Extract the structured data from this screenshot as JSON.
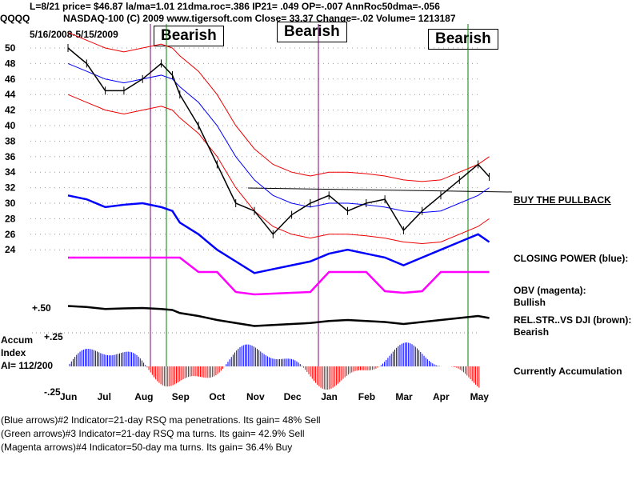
{
  "header": {
    "line1": "L=8/21  price= $46.87  la/ma=1.01 21dma.roc=.386 IP21= .049 OP=-.007 AnnRoc50dma=-.056",
    "symbol": "QQQQ",
    "line2": "NASDAQ-100  (C) 2009 www.tigersoft.com     Close=  33.37  Change=-.02 Volume=  1213187",
    "range": "5/16/2008-5/15/2009"
  },
  "boxes": [
    "Bearish",
    "Bearish",
    "Bearish"
  ],
  "right_labels": {
    "pullback": "BUY THE PULLBACK",
    "cp": "CLOSING POWER (blue):",
    "obv": "OBV (magenta):",
    "obv2": "Bullish",
    "rel": "REL.STR..VS DJI (brown):",
    "rel2": "Bearish",
    "accum": "Currently Accumulation"
  },
  "accum": {
    "label1": "Accum",
    "label2": "Index",
    "ai": "AI= 112/200",
    "plus": "+.50",
    "p25": "+.25",
    "m25": "-.25"
  },
  "footer": [
    "(Blue arrows)#2 Indicator=21-day RSQ ma penetrations. Its gain= 48% Sell",
    "(Green arrows)#3 Indicator=21-day RSQ ma turns. Its gain= 42.9% Sell",
    "(Magenta arrows)#4 Indicator=50-day ma turns. Its gain= 36.4% Buy"
  ],
  "chart_data": {
    "type": "line",
    "title": "QQQQ NASDAQ-100",
    "xlabel": "",
    "ylabel": "",
    "categories": [
      "Jun",
      "Jul",
      "Aug",
      "Sep",
      "Oct",
      "Nov",
      "Dec",
      "Jan",
      "Feb",
      "Mar",
      "Apr",
      "May"
    ],
    "yticks": [
      50,
      48,
      46,
      44,
      42,
      40,
      38,
      36,
      34,
      32,
      30,
      28,
      26,
      24
    ],
    "ylim": [
      24,
      50
    ],
    "price_x": [
      0,
      0.5,
      1,
      1.5,
      2,
      2.5,
      2.8,
      3,
      3.5,
      4,
      4.5,
      5,
      5.5,
      6,
      6.5,
      7,
      7.5,
      8,
      8.5,
      9,
      9.5,
      10,
      10.5,
      11,
      11.3
    ],
    "price": [
      50,
      48,
      44.5,
      44.5,
      46,
      48,
      46.5,
      44,
      40,
      35,
      30,
      29,
      26,
      28.5,
      30,
      31,
      29,
      30,
      30.5,
      26.5,
      29,
      31,
      33,
      35,
      33.4
    ],
    "ma50": [
      48,
      47,
      46,
      45.5,
      46,
      46.5,
      46,
      45,
      43,
      40,
      36,
      33,
      31,
      30,
      29.5,
      30,
      30,
      29.8,
      29.5,
      29,
      28.8,
      29,
      30,
      31,
      32
    ],
    "closing_power": [
      31,
      30.5,
      29.5,
      29.8,
      30,
      29.5,
      29,
      27.5,
      26,
      24,
      22.5,
      21,
      21.5,
      22,
      22.5,
      23.5,
      24,
      23.5,
      23,
      22,
      23,
      24,
      25,
      26,
      25
    ]
  }
}
